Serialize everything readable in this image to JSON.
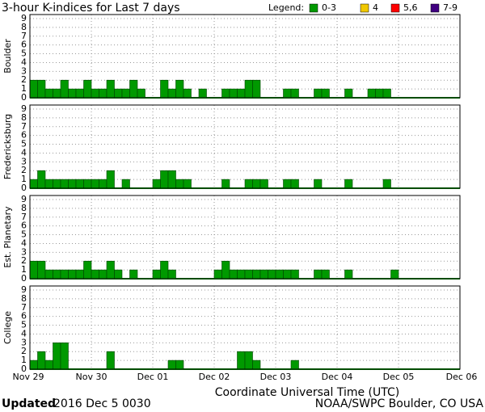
{
  "title": "3-hour K-indices for Last 7 days",
  "legend_title": "Legend:",
  "legend": [
    {
      "label": "0-3",
      "color": "#009900"
    },
    {
      "label": "4",
      "color": "#f0c800"
    },
    {
      "label": "5,6",
      "color": "#ff0000"
    },
    {
      "label": "7-9",
      "color": "#400080"
    }
  ],
  "x_labels": [
    "Nov 29",
    "Nov 30",
    "Dec 01",
    "Dec 02",
    "Dec 03",
    "Dec 04",
    "Dec 05",
    "Dec 06"
  ],
  "xlabel": "Coordinate Universal Time (UTC)",
  "footer": {
    "updated_label": "Updated",
    "updated_time": "2016 Dec  5 0030",
    "source": "NOAA/SWPC Boulder, CO USA"
  },
  "chart_data": [
    {
      "type": "bar",
      "ylabel": "Boulder",
      "color": "#009900",
      "ylim": [
        0,
        9
      ],
      "yticks": [
        0,
        1,
        2,
        3,
        4,
        5,
        6,
        7,
        8,
        9
      ],
      "values": [
        2,
        2,
        1,
        1,
        2,
        1,
        1,
        2,
        1,
        1,
        2,
        1,
        1,
        2,
        1,
        0,
        0,
        2,
        1,
        2,
        1,
        0,
        1,
        0,
        0,
        1,
        1,
        1,
        2,
        2,
        0,
        0,
        0,
        1,
        1,
        0,
        0,
        1,
        1,
        0,
        0,
        1,
        0,
        0,
        1,
        1,
        1,
        0,
        null,
        null,
        null,
        null,
        null,
        null,
        null,
        null
      ]
    },
    {
      "type": "bar",
      "ylabel": "Fredericksburg",
      "color": "#009900",
      "ylim": [
        0,
        9
      ],
      "yticks": [
        0,
        1,
        2,
        3,
        4,
        5,
        6,
        7,
        8,
        9
      ],
      "values": [
        1,
        2,
        1,
        1,
        1,
        1,
        1,
        1,
        1,
        1,
        2,
        0,
        1,
        0,
        0,
        0,
        1,
        2,
        2,
        1,
        1,
        0,
        0,
        0,
        0,
        1,
        0,
        0,
        1,
        1,
        1,
        0,
        0,
        1,
        1,
        0,
        0,
        1,
        0,
        0,
        0,
        1,
        0,
        0,
        0,
        0,
        1,
        0,
        null,
        null,
        null,
        null,
        null,
        null,
        null,
        null
      ]
    },
    {
      "type": "bar",
      "ylabel": "Est. Planetary",
      "color": "#009900",
      "ylim": [
        0,
        9
      ],
      "yticks": [
        0,
        1,
        2,
        3,
        4,
        5,
        6,
        7,
        8,
        9
      ],
      "values": [
        2,
        2,
        1,
        1,
        1,
        1,
        1,
        2,
        1,
        1,
        2,
        1,
        0,
        1,
        0,
        0,
        1,
        2,
        1,
        0,
        0,
        0,
        0,
        0,
        1,
        2,
        1,
        1,
        1,
        1,
        1,
        1,
        1,
        1,
        1,
        0,
        0,
        1,
        1,
        0,
        0,
        1,
        0,
        0,
        0,
        0,
        0,
        1,
        null,
        null,
        null,
        null,
        null,
        null,
        null,
        null
      ]
    },
    {
      "type": "bar",
      "ylabel": "College",
      "color": "#009900",
      "ylim": [
        0,
        9
      ],
      "yticks": [
        0,
        1,
        2,
        3,
        4,
        5,
        6,
        7,
        8,
        9
      ],
      "values": [
        1,
        2,
        1,
        3,
        3,
        0,
        0,
        0,
        0,
        0,
        2,
        0,
        0,
        0,
        0,
        0,
        0,
        0,
        1,
        1,
        0,
        0,
        0,
        0,
        0,
        0,
        0,
        2,
        2,
        1,
        0,
        0,
        0,
        0,
        1,
        0,
        0,
        0,
        0,
        0,
        0,
        0,
        0,
        0,
        0,
        0,
        0,
        0,
        null,
        null,
        null,
        null,
        null,
        null,
        null,
        null
      ]
    }
  ]
}
